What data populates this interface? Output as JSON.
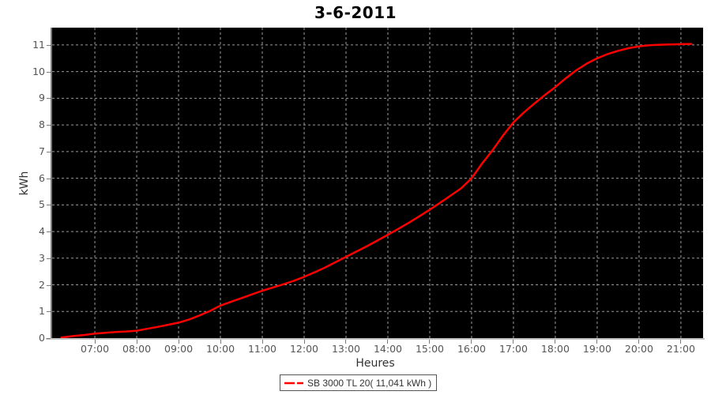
{
  "title": "3-6-2011",
  "legend": {
    "label": "SB 3000 TL 20( 11,041 kWh )"
  },
  "colors": {
    "series": "#ff0000",
    "plot_background": "#000000",
    "gridline": "#9c9c9c",
    "tick_label": "#555555",
    "title": "#000000"
  },
  "chart_data": {
    "type": "line",
    "title": "3-6-2011",
    "xlabel": "Heures",
    "ylabel": "kWh",
    "legend_position": "bottom",
    "grid": true,
    "plot_background": "#000000",
    "xlim": [
      5.98,
      21.53
    ],
    "ylim": [
      0,
      11.65
    ],
    "x_ticks": [
      "07:00",
      "08:00",
      "09:00",
      "10:00",
      "11:00",
      "12:00",
      "13:00",
      "14:00",
      "15:00",
      "16:00",
      "17:00",
      "18:00",
      "19:00",
      "20:00",
      "21:00"
    ],
    "x_tick_hours": [
      7,
      8,
      9,
      10,
      11,
      12,
      13,
      14,
      15,
      16,
      17,
      18,
      19,
      20,
      21
    ],
    "y_ticks": [
      0,
      1,
      2,
      3,
      4,
      5,
      6,
      7,
      8,
      9,
      10,
      11
    ],
    "series": [
      {
        "name": "SB 3000 TL 20( 11,041 kWh )",
        "color": "#ff0000",
        "total_kwh_label": "11,041 kWh",
        "points": [
          [
            6.2,
            0.02
          ],
          [
            6.5,
            0.08
          ],
          [
            6.75,
            0.12
          ],
          [
            7.0,
            0.17
          ],
          [
            7.25,
            0.2
          ],
          [
            7.5,
            0.23
          ],
          [
            7.75,
            0.25
          ],
          [
            8.0,
            0.28
          ],
          [
            8.25,
            0.35
          ],
          [
            8.5,
            0.42
          ],
          [
            8.75,
            0.5
          ],
          [
            9.0,
            0.58
          ],
          [
            9.25,
            0.7
          ],
          [
            9.5,
            0.85
          ],
          [
            9.75,
            1.02
          ],
          [
            10.0,
            1.22
          ],
          [
            10.25,
            1.36
          ],
          [
            10.5,
            1.5
          ],
          [
            10.75,
            1.64
          ],
          [
            11.0,
            1.78
          ],
          [
            11.25,
            1.9
          ],
          [
            11.5,
            2.02
          ],
          [
            11.75,
            2.15
          ],
          [
            12.0,
            2.3
          ],
          [
            12.25,
            2.47
          ],
          [
            12.5,
            2.65
          ],
          [
            12.75,
            2.85
          ],
          [
            13.0,
            3.05
          ],
          [
            13.25,
            3.25
          ],
          [
            13.5,
            3.45
          ],
          [
            13.75,
            3.66
          ],
          [
            14.0,
            3.88
          ],
          [
            14.25,
            4.1
          ],
          [
            14.5,
            4.33
          ],
          [
            14.75,
            4.57
          ],
          [
            15.0,
            4.82
          ],
          [
            15.25,
            5.08
          ],
          [
            15.5,
            5.35
          ],
          [
            15.75,
            5.62
          ],
          [
            16.0,
            6.0
          ],
          [
            16.25,
            6.55
          ],
          [
            16.5,
            7.05
          ],
          [
            16.75,
            7.6
          ],
          [
            17.0,
            8.1
          ],
          [
            17.25,
            8.47
          ],
          [
            17.5,
            8.8
          ],
          [
            17.75,
            9.12
          ],
          [
            18.0,
            9.42
          ],
          [
            18.25,
            9.75
          ],
          [
            18.5,
            10.05
          ],
          [
            18.75,
            10.3
          ],
          [
            19.0,
            10.5
          ],
          [
            19.25,
            10.66
          ],
          [
            19.5,
            10.78
          ],
          [
            19.75,
            10.88
          ],
          [
            20.0,
            10.95
          ],
          [
            20.25,
            10.99
          ],
          [
            20.5,
            11.01
          ],
          [
            20.75,
            11.02
          ],
          [
            21.0,
            11.03
          ],
          [
            21.25,
            11.04
          ]
        ]
      }
    ]
  }
}
